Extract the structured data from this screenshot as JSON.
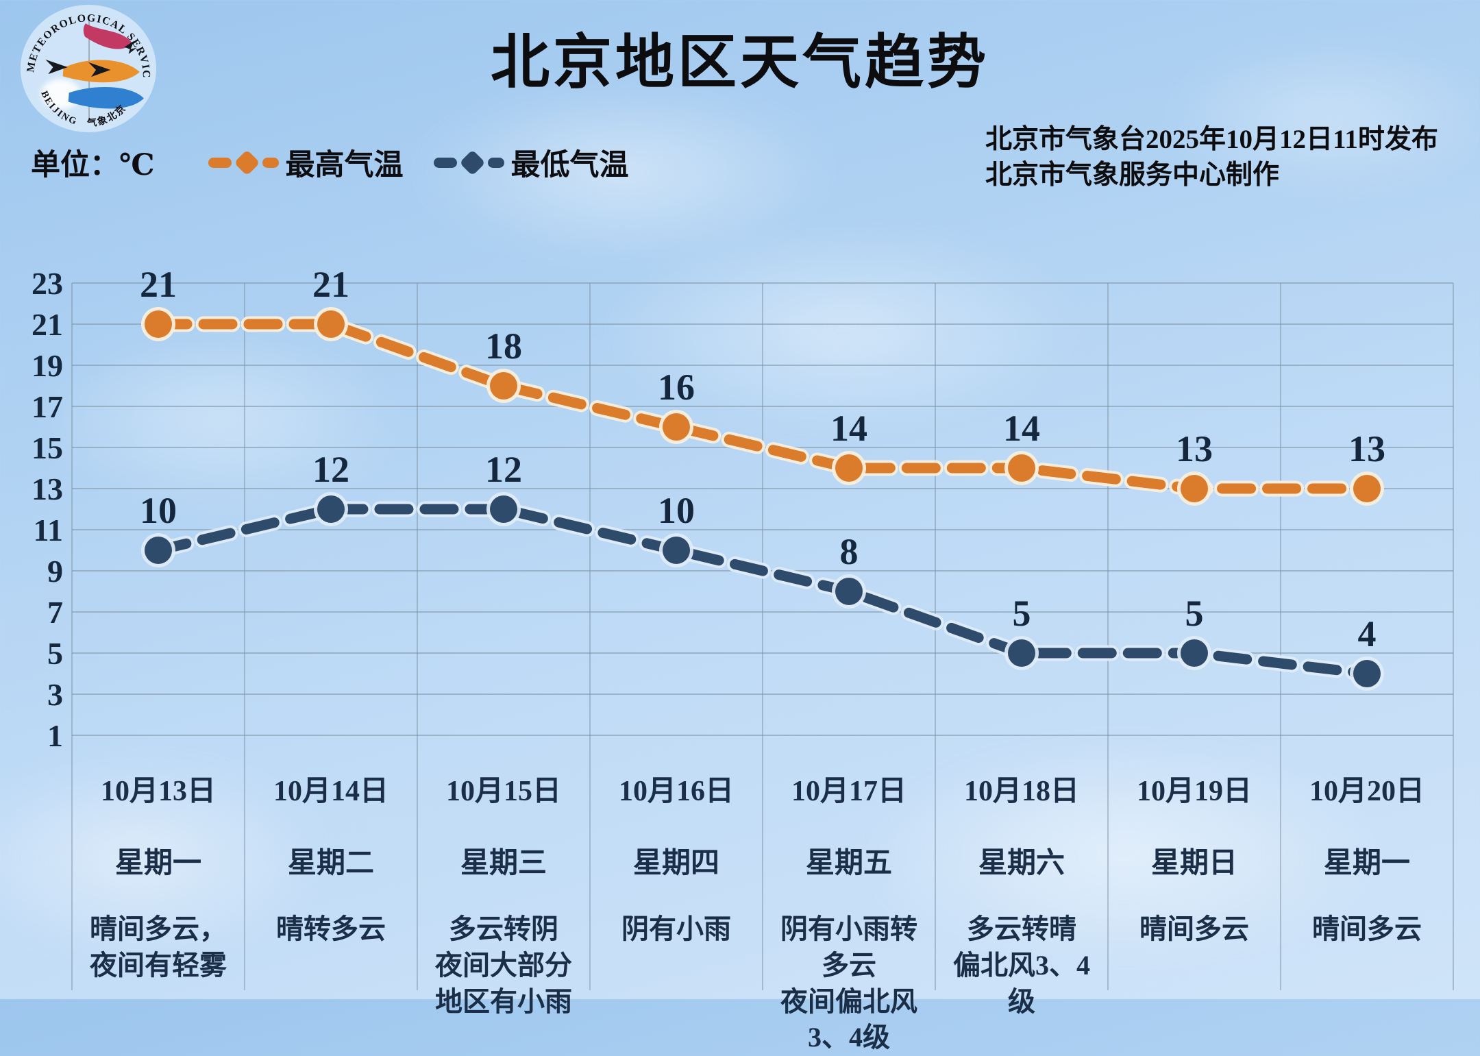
{
  "header": {
    "title": "北京地区天气趋势",
    "unit_label": "单位：℃",
    "issued_line1": "北京市气象台2025年10月12日11时发布",
    "issued_line2": "北京市气象服务中心制作"
  },
  "logo": {
    "arc_top_text": "METEOROLOGICAL SERVICE",
    "arc_bottom_text": "BEIJING　气象北京"
  },
  "legend": [
    {
      "label": "最高气温",
      "color": "#db7b2c"
    },
    {
      "label": "最低气温",
      "color": "#2e4b6b"
    }
  ],
  "chart_data": {
    "type": "line",
    "title": "北京地区天气趋势",
    "unit": "℃",
    "line_style": "dashed",
    "marker": "circle",
    "grid": true,
    "legend_position": "top-left",
    "ylim": [
      1,
      23
    ],
    "y_ticks": [
      23,
      21,
      19,
      17,
      15,
      13,
      11,
      9,
      7,
      5,
      3,
      1
    ],
    "x": [
      "10月13日",
      "10月14日",
      "10月15日",
      "10月16日",
      "10月17日",
      "10月18日",
      "10月19日",
      "10月20日"
    ],
    "weekdays": [
      "星期一",
      "星期二",
      "星期三",
      "星期四",
      "星期五",
      "星期六",
      "星期日",
      "星期一"
    ],
    "weather": [
      [
        "晴间多云，夜间有轻雾"
      ],
      [
        "晴转多云"
      ],
      [
        "多云转阴",
        "夜间大部分地区有小雨"
      ],
      [
        "阴有小雨"
      ],
      [
        "阴有小雨转多云",
        "夜间偏北风3、4级"
      ],
      [
        "多云转晴",
        "偏北风3、4级"
      ],
      [
        "晴间多云"
      ],
      [
        "晴间多云"
      ]
    ],
    "series": [
      {
        "name": "最高气温",
        "color": "#db7b2c",
        "values": [
          21,
          21,
          18,
          16,
          14,
          14,
          13,
          13
        ]
      },
      {
        "name": "最低气温",
        "color": "#2e4b6b",
        "values": [
          10,
          12,
          12,
          10,
          8,
          5,
          5,
          4
        ]
      }
    ]
  }
}
